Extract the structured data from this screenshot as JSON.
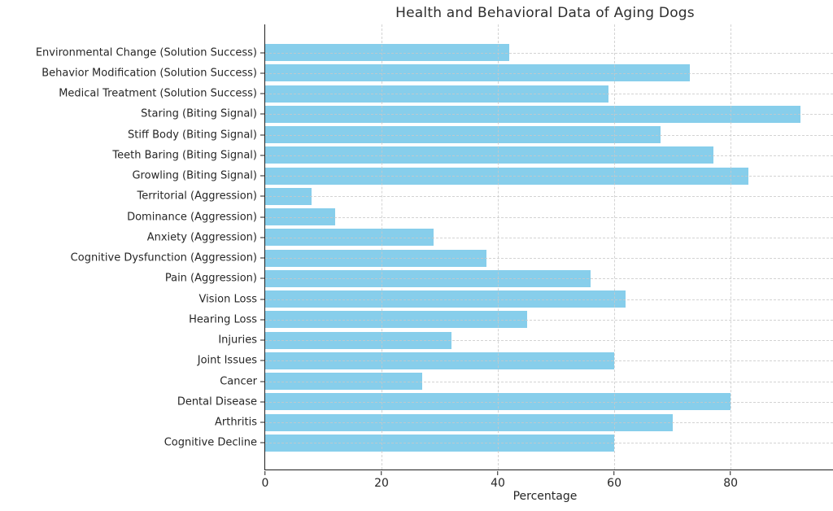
{
  "chart_data": {
    "type": "bar",
    "orientation": "horizontal",
    "title": "Health and Behavioral Data of Aging Dogs",
    "xlabel": "Percentage",
    "ylabel": "",
    "x_ticks": [
      0,
      20,
      40,
      60,
      80
    ],
    "xlim": [
      0,
      97.6
    ],
    "grid": true,
    "grid_style": "dashed",
    "legend": "none",
    "bar_color": "#87CEEB",
    "axis_color": "#1f1f1f",
    "categories": [
      "Environmental Change (Solution Success)",
      "Behavior Modification (Solution Success)",
      "Medical Treatment (Solution Success)",
      "Staring (Biting Signal)",
      "Stiff Body (Biting Signal)",
      "Teeth Baring (Biting Signal)",
      "Growling (Biting Signal)",
      "Territorial (Aggression)",
      "Dominance (Aggression)",
      "Anxiety (Aggression)",
      "Cognitive Dysfunction (Aggression)",
      "Pain (Aggression)",
      "Vision Loss",
      "Hearing Loss",
      "Injuries",
      "Joint Issues",
      "Cancer",
      "Dental Disease",
      "Arthritis",
      "Cognitive Decline"
    ],
    "values": [
      42,
      73,
      59,
      92,
      68,
      77,
      83,
      8,
      12,
      29,
      38,
      56,
      62,
      45,
      32,
      60,
      27,
      80,
      70,
      60
    ]
  }
}
